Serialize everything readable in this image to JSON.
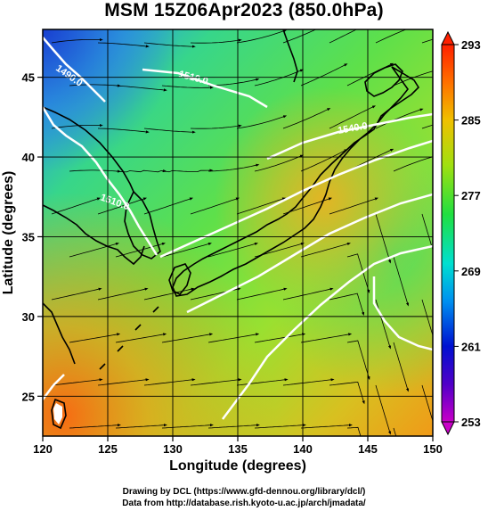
{
  "title": "MSM 15Z06Apr2023 (850.0hPa)",
  "xlabel": "Longitude (degrees)",
  "ylabel": "Latitude  (degrees)",
  "x_ticks": [
    "120",
    "125",
    "130",
    "135",
    "140",
    "145",
    "150"
  ],
  "y_ticks": [
    "25",
    "30",
    "35",
    "40",
    "45"
  ],
  "colorbar_ticks": [
    "293",
    "285",
    "277",
    "269",
    "261",
    "253"
  ],
  "contour_labels": [
    "1490.0",
    "1510.0",
    "1510.0",
    "1540.0"
  ],
  "credit_line1": "Drawing by DCL (https://www.gfd-dennou.org/library/dcl/)",
  "credit_line2": "Data from http://database.rish.kyoto-u.ac.jp/arch/jmadata/",
  "map": {
    "lon_range": [
      120,
      150
    ],
    "lat_range": [
      22.5,
      48
    ],
    "grid_lon_step": 5,
    "grid_lat_step": 5,
    "colorbar_range": [
      253,
      293
    ],
    "colors": {
      "cold": "#1e50d8",
      "mid": "#2ee070",
      "warm": "#f09a10",
      "contour": "#ffffff",
      "streamline": "#000000"
    }
  }
}
